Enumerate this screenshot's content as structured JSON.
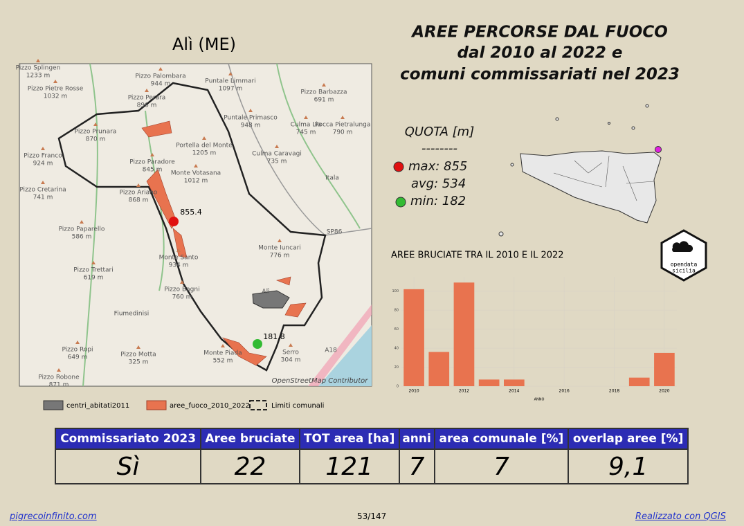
{
  "map_title": "Alì (ME)",
  "title": [
    "AREE PERCORSE DAL FUOCO",
    "dal 2010 al 2022 e",
    "comuni commissariati nel 2023"
  ],
  "quota": {
    "title": "QUOTA [m]",
    "separator": "--------",
    "max_label": "max:",
    "max": 855,
    "avg_label": "avg:",
    "avg": 534,
    "min_label": "min:",
    "min": 182
  },
  "map": {
    "labels": [
      {
        "name": "Pizzo Splingen",
        "elevation": "1233 m"
      },
      {
        "name": "Pizzo Pietre Rosse",
        "elevation": "1032 m"
      },
      {
        "name": "Pizzo Palombara",
        "elevation": "944 m"
      },
      {
        "name": "Pizzo Perara",
        "elevation": "896 m"
      },
      {
        "name": "Pizzo Prunara",
        "elevation": "870 m"
      },
      {
        "name": "Pizzo Franco",
        "elevation": "924 m"
      },
      {
        "name": "Pizzo Cretarina",
        "elevation": "741 m"
      },
      {
        "name": "Pizzo Paradore",
        "elevation": "845 m"
      },
      {
        "name": "Pizzo Ariano",
        "elevation": "868 m"
      },
      {
        "name": "Portella del Monte",
        "elevation": "1205 m"
      },
      {
        "name": "Monte Votasana",
        "elevation": "1012 m"
      },
      {
        "name": "Puntale Limmari",
        "elevation": "1097 m"
      },
      {
        "name": "Puntale Primasco",
        "elevation": "948 m"
      },
      {
        "name": "Culma Lia",
        "elevation": "745 m"
      },
      {
        "name": "Pizzo Barbazza",
        "elevation": "691 m"
      },
      {
        "name": "Rocca Pietralunga",
        "elevation": "790 m"
      },
      {
        "name": "Culma Caravagi",
        "elevation": "735 m"
      },
      {
        "name": "Pizzo Paparello",
        "elevation": "586 m"
      },
      {
        "name": "Pizzo Trettari",
        "elevation": "619 m"
      },
      {
        "name": "Monte Iuncari",
        "elevation": "776 m"
      },
      {
        "name": "Monte Santo",
        "elevation": "934 m"
      },
      {
        "name": "Pizzo Bagni",
        "elevation": "760 m"
      },
      {
        "name": "Pizzo Ropi",
        "elevation": "649 m"
      },
      {
        "name": "Pizzo Motta",
        "elevation": "325 m"
      },
      {
        "name": "Pizzo Robone",
        "elevation": "871 m"
      },
      {
        "name": "Monte Piada",
        "elevation": "552 m"
      },
      {
        "name": "Serro",
        "elevation": "304 m"
      }
    ],
    "places": [
      "Itala",
      "Fiumedinisi",
      "Alì",
      "SP86",
      "A18"
    ],
    "max_point": "855.4",
    "min_point": "181.8",
    "attribution": "OpenStreetMap Contributor"
  },
  "legend": [
    "centri_abitati2011",
    "aree_fuoco_2010_2022",
    "Limiti comunali"
  ],
  "logo": [
    "opendata",
    "sicilia"
  ],
  "chart_data": {
    "type": "bar",
    "title": "AREE BRUCIATE TRA IL 2010 E IL 2022",
    "x_label": "ANNO",
    "color": "#e8734f",
    "x": [
      2010,
      2011,
      2012,
      2013,
      2014,
      2015,
      2016,
      2017,
      2018,
      2019,
      2020
    ],
    "values": [
      102,
      36,
      109,
      7,
      7,
      0,
      0,
      0,
      0,
      9,
      35
    ],
    "xlim": [
      2009.5,
      2020.5
    ],
    "xticks": [
      2010,
      2012,
      2014,
      2016,
      2018,
      2020
    ],
    "ylim": [
      0,
      115
    ],
    "yticks": [
      0,
      20,
      40,
      60,
      80,
      100
    ],
    "grid": true
  },
  "table": {
    "header": [
      "Commissariato 2023",
      "Aree bruciate",
      "TOT area [ha]",
      "anni",
      "area comunale [%]",
      "overlap aree [%]"
    ],
    "rows": [
      [
        "Sì",
        22,
        121,
        7,
        7,
        "9,1"
      ]
    ]
  },
  "footer": {
    "left": "pigrecoinfinito.com",
    "center": "53/147",
    "right": "Realizzato con QGIS"
  }
}
